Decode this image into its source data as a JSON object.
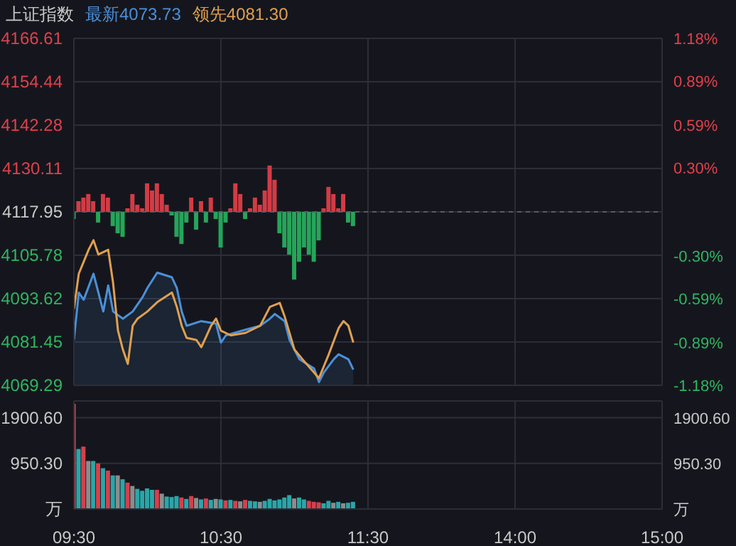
{
  "chart_data": [
    {
      "type": "line",
      "title": "上证指数",
      "legend": "top left",
      "grid": true,
      "tick_labels": "y",
      "categories": [
        null,
        null,
        null,
        null,
        null,
        null,
        null,
        null,
        null,
        null,
        null,
        null,
        null,
        null,
        null,
        null,
        null,
        null,
        null,
        null,
        null,
        null,
        null,
        null,
        null,
        null,
        null,
        null,
        null,
        null,
        null,
        null,
        null,
        null,
        null,
        null,
        null,
        null,
        null,
        null,
        null,
        null,
        null,
        null,
        null,
        null,
        null,
        null,
        null,
        null,
        null,
        null,
        null,
        null,
        null,
        null,
        null,
        null,
        null,
        null,
        null,
        null,
        null,
        null,
        null,
        null,
        null,
        null,
        null,
        null,
        null,
        null,
        null,
        null,
        null,
        null,
        null,
        null,
        null,
        null,
        null,
        null,
        null,
        null,
        null,
        null,
        null,
        null,
        null,
        null,
        null,
        null,
        null,
        null,
        null,
        null,
        null,
        null,
        null,
        null,
        null,
        null,
        null,
        null,
        null,
        null,
        null,
        null,
        null,
        null,
        null,
        null,
        null,
        null,
        null,
        null,
        null,
        null,
        null,
        null,
        null
      ],
      "ylim": [
        4069.29,
        4166.61
      ],
      "yticks": [
        4069.29,
        4081.45,
        4093.62,
        4105.78,
        4117.95,
        4130.11,
        4142.28,
        4154.44,
        4166.61
      ],
      "y2lim": [
        -1.18,
        1.18
      ],
      "y2ticks": [
        {
          "value": -1.18,
          "label": "-1.18%"
        },
        {
          "value": -0.89,
          "label": "-0.89%"
        },
        {
          "value": -0.59,
          "label": "-0.59%"
        },
        {
          "value": -0.3,
          "label": "-0.30%"
        },
        {
          "value": 0,
          "label": null
        },
        {
          "value": 0.3,
          "label": "0.30%"
        },
        {
          "value": 0.59,
          "label": "0.59%"
        },
        {
          "value": 0.89,
          "label": "0.89%"
        },
        {
          "value": 1.18,
          "label": "1.18%"
        }
      ],
      "ref_lines": [
        {
          "axis": "y",
          "value": 4117.95,
          "color": "#5a5c66",
          "line_style": "dashed"
        }
      ],
      "series": [
        {
          "type": "bar",
          "base": [
            4117.95,
            4117.95,
            4117.95,
            4117.95,
            4117.95,
            4117.95,
            4117.95,
            4117.95,
            4117.95,
            4117.95,
            4117.95,
            4117.95,
            4117.95,
            4117.95,
            4117.95,
            4117.95,
            4117.95,
            4117.95,
            4117.95,
            4117.95,
            4117.95,
            4117.95,
            4117.95,
            4117.95,
            4117.95,
            4117.95,
            4117.95,
            4117.95,
            4117.95,
            4117.95,
            4117.95,
            4117.95,
            4117.95,
            4117.95,
            4117.95,
            4117.95,
            4117.95,
            4117.95,
            4117.95,
            4117.95,
            4117.95,
            4117.95,
            4117.95,
            4117.95,
            4117.95,
            4117.95,
            4117.95,
            4117.95,
            4117.95,
            4117.95,
            4117.95,
            4117.95,
            4117.95,
            4117.95,
            4117.95,
            4117.95,
            4117.95,
            4117.95,
            null,
            null,
            null,
            null,
            null,
            null,
            null,
            null,
            null,
            null,
            null,
            null,
            null,
            null,
            null,
            null,
            null,
            null,
            null,
            null,
            null,
            null,
            null,
            null,
            null,
            null,
            null,
            null,
            null,
            null,
            null,
            null,
            null,
            null,
            null,
            null,
            null,
            null,
            null,
            null,
            null,
            null,
            null,
            null,
            null,
            null,
            null,
            null,
            null,
            null,
            null,
            null,
            null,
            null,
            null,
            null,
            null,
            null,
            null,
            null,
            null,
            null,
            null
          ],
          "values": [
            -2,
            3,
            4,
            5,
            3,
            -3,
            5,
            4,
            -4,
            -6,
            -7,
            1,
            5,
            2,
            1,
            8,
            6,
            8,
            5,
            2,
            -1,
            -7,
            -9,
            -3,
            4,
            -5,
            3,
            -3,
            4,
            -2,
            -10,
            -3,
            1,
            8,
            5,
            -2,
            1,
            4,
            2,
            6,
            13,
            9,
            -6,
            -10,
            -12,
            -19,
            -14,
            -10,
            -12,
            -14,
            -8,
            1,
            7,
            5,
            1,
            5,
            -3,
            -4,
            null,
            null,
            null,
            null,
            null,
            null,
            null,
            null,
            null,
            null,
            null,
            null,
            null,
            null,
            null,
            null,
            null,
            null,
            null,
            null,
            null,
            null,
            null,
            null,
            null,
            null,
            null,
            null,
            null,
            null,
            null,
            null,
            null,
            null,
            null,
            null,
            null,
            null,
            null,
            null,
            null,
            null,
            null,
            null,
            null,
            null,
            null,
            null,
            null,
            null,
            null,
            null,
            null,
            null,
            null,
            null,
            null,
            null,
            null,
            null,
            null,
            null,
            null
          ],
          "colors": [
            "#25a55a",
            "#d23c45",
            "#d23c45",
            "#d23c45",
            "#d23c45",
            "#25a55a",
            "#d23c45",
            "#d23c45",
            "#25a55a",
            "#25a55a",
            "#25a55a",
            "#d23c45",
            "#d23c45",
            "#d23c45",
            "#d23c45",
            "#d23c45",
            "#d23c45",
            "#d23c45",
            "#d23c45",
            "#d23c45",
            "#25a55a",
            "#25a55a",
            "#25a55a",
            "#25a55a",
            "#d23c45",
            "#25a55a",
            "#d23c45",
            "#25a55a",
            "#d23c45",
            "#25a55a",
            "#25a55a",
            "#25a55a",
            "#d23c45",
            "#d23c45",
            "#d23c45",
            "#25a55a",
            "#d23c45",
            "#d23c45",
            "#d23c45",
            "#d23c45",
            "#d23c45",
            "#d23c45",
            "#25a55a",
            "#25a55a",
            "#25a55a",
            "#25a55a",
            "#25a55a",
            "#25a55a",
            "#25a55a",
            "#25a55a",
            "#25a55a",
            "#d23c45",
            "#d23c45",
            "#d23c45",
            "#d23c45",
            "#d23c45",
            "#25a55a",
            "#25a55a",
            null,
            null,
            null,
            null,
            null,
            null,
            null,
            null,
            null,
            null,
            null,
            null,
            null,
            null,
            null,
            null,
            null,
            null,
            null,
            null,
            null,
            null,
            null,
            null,
            null,
            null,
            null,
            null,
            null,
            null,
            null,
            null,
            null,
            null,
            null,
            null,
            null,
            null,
            null,
            null,
            null,
            null,
            null,
            null,
            null,
            null,
            null,
            null,
            null,
            null,
            null,
            null,
            null,
            null,
            null,
            null,
            null,
            null,
            null,
            null,
            null,
            null,
            null
          ]
        },
        {
          "type": "area",
          "name": "最新4073.73",
          "color": "#4a90d9",
          "values": [
            4082.0,
            4095.3,
            4093.3,
            null,
            4100.6,
            null,
            4090.0,
            4097.3,
            4090.0,
            null,
            4088.0,
            null,
            4090.0,
            null,
            4094.0,
            4096.6,
            null,
            4100.9,
            null,
            null,
            4099.6,
            4096.6,
            4090.0,
            4086.0,
            null,
            null,
            4087.3,
            null,
            null,
            4086.6,
            4081.3,
            4083.3,
            null,
            null,
            null,
            4084.9,
            null,
            null,
            4086.0,
            null,
            4088.0,
            4089.3,
            null,
            4087.3,
            4082.0,
            null,
            4076.6,
            null,
            null,
            4074.0,
            4070.2,
            4072.9,
            null,
            4076.6,
            4078.0,
            null,
            4076.6,
            4073.7,
            null,
            null,
            null,
            null,
            null,
            null,
            null,
            null,
            null,
            null,
            null,
            null,
            null,
            null,
            null,
            null,
            null,
            null,
            null,
            null,
            null,
            null,
            null,
            null,
            null,
            null,
            null,
            null,
            null,
            null,
            null,
            null,
            null,
            null,
            null,
            null,
            null,
            null,
            null,
            null,
            null,
            null,
            null,
            null,
            null,
            null,
            null,
            null,
            null,
            null,
            null,
            null,
            null,
            null,
            null,
            null,
            null,
            null,
            null,
            null,
            null,
            null,
            null
          ]
        },
        {
          "type": "line",
          "name": "领先4081.30",
          "color": "#e0a050",
          "values": [
            4090.6,
            4100.6,
            null,
            4107.3,
            4110.0,
            4106.0,
            null,
            4107.3,
            4098.0,
            4084.6,
            4079.3,
            4075.3,
            4086.0,
            4088.0,
            null,
            4090.0,
            null,
            4092.6,
            null,
            null,
            4095.3,
            4091.3,
            4086.0,
            4082.6,
            null,
            4082.0,
            4080.0,
            null,
            4086.0,
            4088.0,
            4084.6,
            null,
            4083.3,
            null,
            null,
            4084.0,
            null,
            null,
            4086.0,
            null,
            4091.3,
            null,
            4092.4,
            4088.6,
            null,
            4079.3,
            null,
            4076.0,
            null,
            null,
            4071.3,
            null,
            4078.0,
            null,
            4085.3,
            4087.3,
            4086.0,
            4081.3,
            null,
            null,
            null,
            null,
            null,
            null,
            null,
            null,
            null,
            null,
            null,
            null,
            null,
            null,
            null,
            null,
            null,
            null,
            null,
            null,
            null,
            null,
            null,
            null,
            null,
            null,
            null,
            null,
            null,
            null,
            null,
            null,
            null,
            null,
            null,
            null,
            null,
            null,
            null,
            null,
            null,
            null,
            null,
            null,
            null,
            null,
            null,
            null,
            null,
            null,
            null,
            null,
            null,
            null,
            null,
            null,
            null,
            null,
            null,
            null,
            null,
            null,
            null
          ]
        }
      ]
    },
    {
      "type": "bar",
      "grid": true,
      "categories": [
        "09:30",
        null,
        null,
        null,
        null,
        null,
        null,
        null,
        null,
        null,
        null,
        null,
        null,
        null,
        null,
        null,
        null,
        null,
        null,
        null,
        null,
        null,
        null,
        null,
        null,
        null,
        null,
        null,
        null,
        null,
        "10:30",
        null,
        null,
        null,
        null,
        null,
        null,
        null,
        null,
        null,
        null,
        null,
        null,
        null,
        null,
        null,
        null,
        null,
        null,
        null,
        null,
        null,
        null,
        null,
        null,
        null,
        null,
        null,
        null,
        null,
        "11:30",
        null,
        null,
        null,
        null,
        null,
        null,
        null,
        null,
        null,
        null,
        null,
        null,
        null,
        null,
        null,
        null,
        null,
        null,
        null,
        null,
        null,
        null,
        null,
        null,
        null,
        null,
        null,
        null,
        null,
        "14:00",
        null,
        null,
        null,
        null,
        null,
        null,
        null,
        null,
        null,
        null,
        null,
        null,
        null,
        null,
        null,
        null,
        null,
        null,
        null,
        null,
        null,
        null,
        null,
        null,
        null,
        null,
        null,
        null,
        null,
        "15:00"
      ],
      "ylim": [
        0,
        2250
      ],
      "yticks": [
        {
          "value": 0,
          "label": "万"
        },
        {
          "value": 950.3,
          "label": "950.30"
        },
        {
          "value": 1900.6,
          "label": "1900.60"
        }
      ],
      "y2lim": [
        0,
        2250
      ],
      "y2ticks": [
        {
          "value": 0,
          "label": "万"
        },
        {
          "value": 950.3,
          "label": "950.30"
        },
        {
          "value": 1900.6,
          "label": "1900.60"
        }
      ],
      "series": [
        {
          "values": [
            2190,
            1250,
            1300,
            1000,
            1000,
            950,
            850,
            800,
            700,
            700,
            620,
            550,
            480,
            420,
            380,
            430,
            400,
            400,
            320,
            260,
            250,
            270,
            240,
            210,
            270,
            230,
            200,
            220,
            190,
            210,
            200,
            180,
            190,
            170,
            160,
            190,
            170,
            160,
            150,
            170,
            210,
            180,
            200,
            240,
            290,
            220,
            240,
            200,
            170,
            150,
            140,
            120,
            170,
            130,
            150,
            120,
            130,
            150,
            null,
            null,
            null,
            null,
            null,
            null,
            null,
            null,
            null,
            null,
            null,
            null,
            null,
            null,
            null,
            null,
            null,
            null,
            null,
            null,
            null,
            null,
            null,
            null,
            null,
            null,
            null,
            null,
            null,
            null,
            null,
            null,
            null,
            null,
            null,
            null,
            null,
            null,
            null,
            null,
            null,
            null,
            null,
            null,
            null,
            null,
            null,
            null,
            null,
            null,
            null,
            null,
            null,
            null,
            null,
            null,
            null,
            null,
            null,
            null,
            null,
            null,
            null
          ],
          "colors": [
            "#d6404c",
            "#2aa6a8",
            "#d6404c",
            "#8c8c8c",
            "#2aa6a8",
            "#d6404c",
            "#2aa6a8",
            "#d6404c",
            "#2aa6a8",
            "#8c8c8c",
            "#2aa6a8",
            "#d6404c",
            "#8c8c8c",
            "#2aa6a8",
            "#2aa6a8",
            "#2aa6a8",
            "#2aa6a8",
            "#d6404c",
            "#8c8c8c",
            "#2aa6a8",
            "#2aa6a8",
            "#2aa6a8",
            "#d6404c",
            "#2aa6a8",
            "#d6404c",
            "#8c8c8c",
            "#2aa6a8",
            "#d6404c",
            "#2aa6a8",
            "#8c8c8c",
            "#2aa6a8",
            "#d6404c",
            "#2aa6a8",
            "#d6404c",
            "#8c8c8c",
            "#d6404c",
            "#2aa6a8",
            "#2aa6a8",
            "#8c8c8c",
            "#2aa6a8",
            "#2aa6a8",
            "#2aa6a8",
            "#2aa6a8",
            "#2aa6a8",
            "#2aa6a8",
            "#8c8c8c",
            "#2aa6a8",
            "#2aa6a8",
            "#d6404c",
            "#d6404c",
            "#d6404c",
            "#2aa6a8",
            "#2aa6a8",
            "#8c8c8c",
            "#2aa6a8",
            "#8c8c8c",
            "#2aa6a8",
            "#2aa6a8",
            null,
            null,
            null,
            null,
            null,
            null,
            null,
            null,
            null,
            null,
            null,
            null,
            null,
            null,
            null,
            null,
            null,
            null,
            null,
            null,
            null,
            null,
            null,
            null,
            null,
            null,
            null,
            null,
            null,
            null,
            null,
            null,
            null,
            null,
            null,
            null,
            null,
            null,
            null,
            null,
            null,
            null,
            null,
            null,
            null,
            null,
            null,
            null,
            null,
            null,
            null,
            null,
            null,
            null,
            null,
            null,
            null,
            null,
            null,
            null,
            null,
            null,
            null
          ]
        }
      ]
    }
  ]
}
